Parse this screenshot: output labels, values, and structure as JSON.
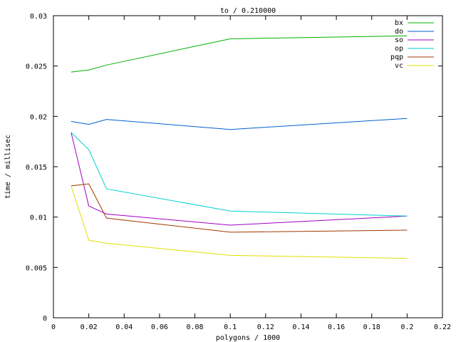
{
  "chart_data": {
    "type": "line",
    "title": "to / 0.210000",
    "xlabel": "polygons / 1000",
    "ylabel": "time / millisec",
    "xlim": [
      0,
      0.22
    ],
    "ylim": [
      0,
      0.03
    ],
    "xticks": [
      "0",
      "0.02",
      "0.04",
      "0.06",
      "0.08",
      "0.1",
      "0.12",
      "0.14",
      "0.16",
      "0.18",
      "0.2",
      "0.22"
    ],
    "yticks": [
      "0",
      "0.005",
      "0.01",
      "0.015",
      "0.02",
      "0.025",
      "0.03"
    ],
    "grid": false,
    "legend_position": "top-right",
    "x": [
      0.01,
      0.02,
      0.03,
      0.1,
      0.2
    ],
    "series": [
      {
        "name": "bx",
        "color": "#00b000",
        "values": [
          0.0244,
          0.0246,
          0.0251,
          0.0277,
          0.028
        ]
      },
      {
        "name": "do",
        "color": "#0060d0",
        "values": [
          0.0195,
          0.0192,
          0.0197,
          0.0187,
          0.0198
        ]
      },
      {
        "name": "so",
        "color": "#a000c0",
        "values": [
          0.0184,
          0.0111,
          0.0103,
          0.0092,
          0.0101
        ]
      },
      {
        "name": "op",
        "color": "#00d0d0",
        "values": [
          0.0184,
          0.0167,
          0.0128,
          0.0106,
          0.0101
        ]
      },
      {
        "name": "pqp",
        "color": "#a03800",
        "values": [
          0.0131,
          0.0133,
          0.0099,
          0.0085,
          0.0087
        ]
      },
      {
        "name": "vc",
        "color": "#e0e000",
        "values": [
          0.0131,
          0.0077,
          0.0074,
          0.0062,
          0.0059
        ]
      }
    ]
  }
}
